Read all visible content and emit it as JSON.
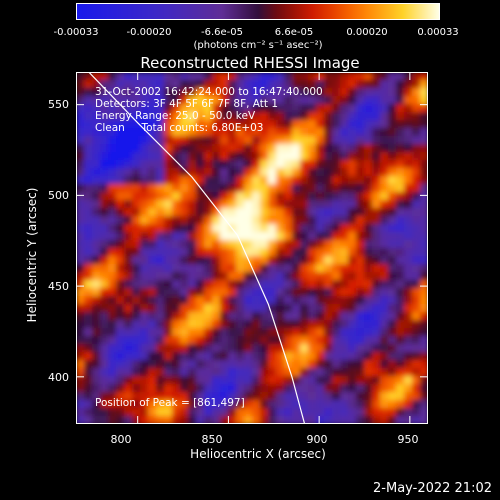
{
  "colorbar": {
    "ticks": [
      "-0.00033",
      "-0.00020",
      "-6.6e-05",
      "6.6e-05",
      "0.00020",
      "0.00033"
    ],
    "units_label": "(photons cm⁻² s⁻¹ asec⁻²)",
    "range": [
      -0.00033,
      0.00033
    ]
  },
  "chart_data": {
    "type": "heatmap",
    "title": "Reconstructed RHESSI Image",
    "xlabel": "Heliocentric X (arcsec)",
    "ylabel": "Heliocentric Y (arcsec)",
    "xlim": [
      766,
      960
    ],
    "ylim": [
      374,
      568
    ],
    "x_ticks": [
      800,
      850,
      900,
      950
    ],
    "y_ticks": [
      400,
      450,
      500,
      550
    ],
    "x_tick_labels": [
      "800",
      "850",
      "900",
      "950"
    ],
    "y_tick_labels": [
      "400",
      "450",
      "500",
      "550"
    ],
    "limb_curve": [
      [
        773,
        568
      ],
      [
        800,
        540
      ],
      [
        830,
        510
      ],
      [
        855,
        478
      ],
      [
        872,
        440
      ],
      [
        885,
        400
      ],
      [
        892,
        374
      ]
    ],
    "peak": [
      861,
      497
    ],
    "info_lines": [
      "31-Oct-2002 16:42:24.000 to 16:47:40.000",
      "Detectors: 3F 4F 5F 6F 7F 8F, Att 1",
      "Energy Range: 25.0 - 50.0 keV",
      "Clean     Total counts: 6.80E+03"
    ],
    "peak_label": "Position of Peak = [861,497]"
  },
  "footer": {
    "date": "2-May-2022 21:02"
  }
}
